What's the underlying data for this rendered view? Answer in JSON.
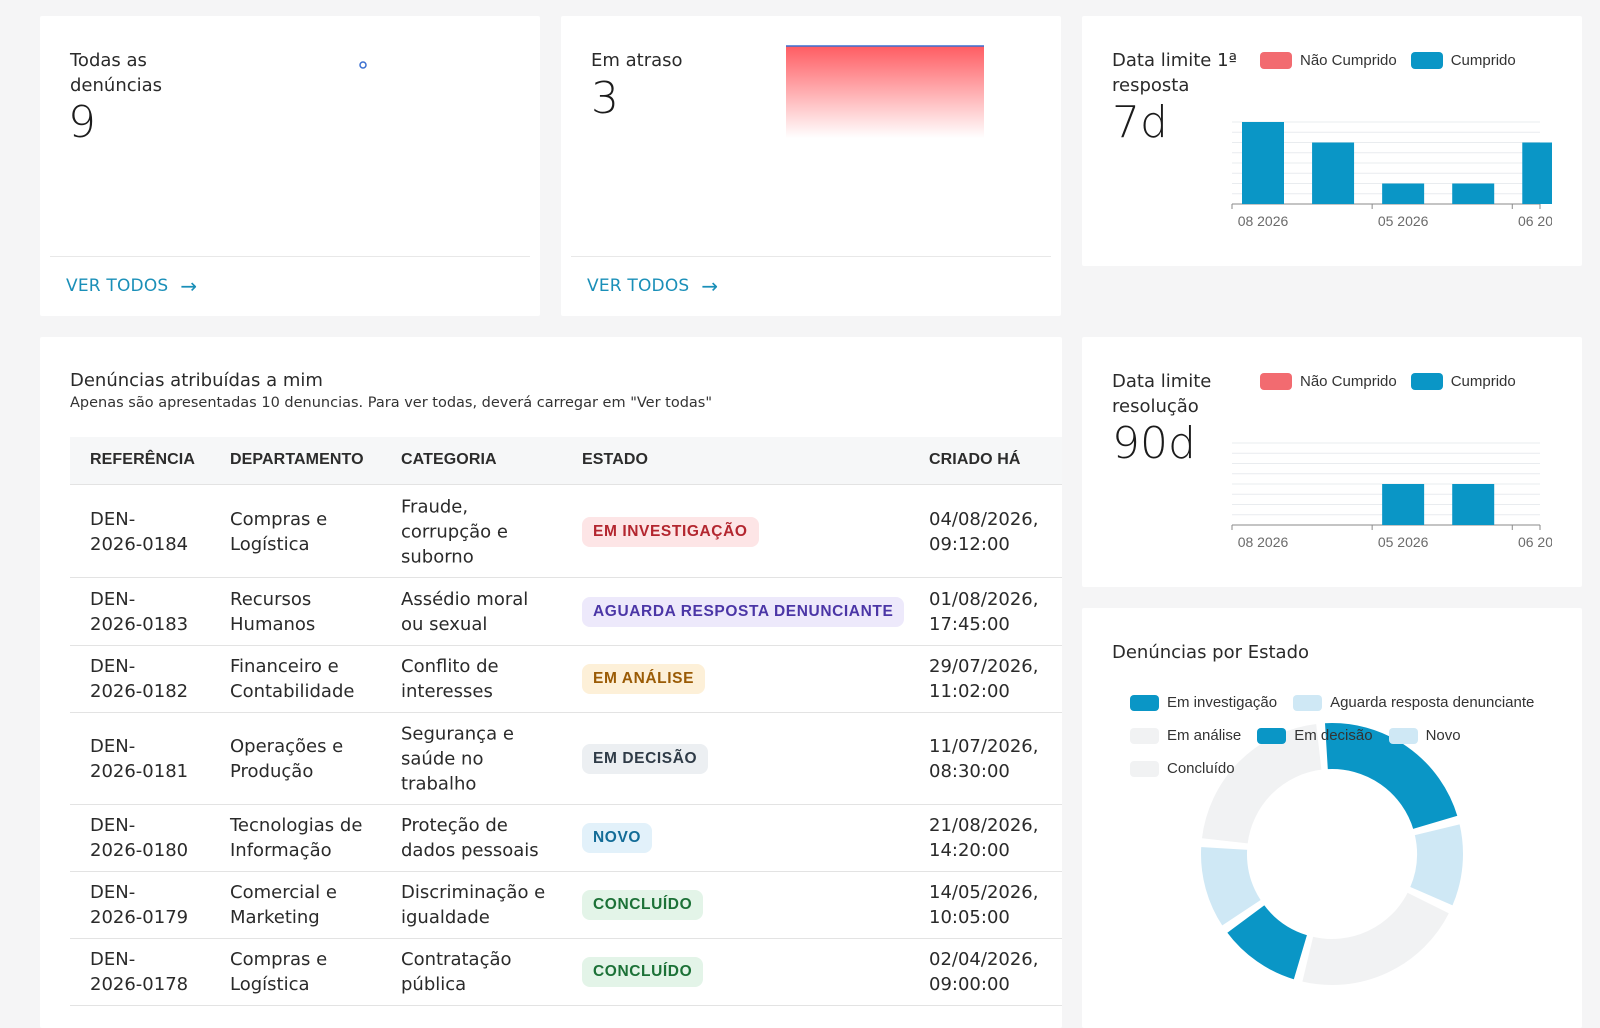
{
  "cards": {
    "total": {
      "title_line1": "Todas as",
      "title_line2": "denúncias",
      "value": "9",
      "link": "VER TODOS",
      "arrow": "→"
    },
    "overdue": {
      "title": "Em atraso",
      "value": "3",
      "link": "VER TODOS",
      "arrow": "→"
    },
    "first_response": {
      "title_line1": "Data limite 1ª",
      "title_line2": "resposta",
      "value": "7d",
      "legend": [
        "Não Cumprido",
        "Cumprido"
      ],
      "ticks": [
        "08 2026",
        "05 2026",
        "06 2026"
      ]
    },
    "resolution": {
      "title_line1": "Data limite",
      "title_line2": "resolução",
      "value": "90d",
      "legend": [
        "Não Cumprido",
        "Cumprido"
      ],
      "ticks": [
        "08 2026",
        "05 2026",
        "06 2026"
      ]
    },
    "by_state": {
      "title": "Denúncias por Estado",
      "legend": [
        "Em investigação",
        "Aguarda resposta denunciante",
        "Em análise",
        "Em decisão",
        "Novo",
        "Concluído"
      ]
    }
  },
  "colors": {
    "not_met": "#f26b70",
    "met": "#0a96c6",
    "link": "#1a8fb8"
  },
  "chart_data": [
    {
      "type": "bar",
      "categories": [
        "08 2026",
        "",
        "05 2026",
        "",
        "06 2026"
      ],
      "series": [
        {
          "name": "Cumprido",
          "values": [
            4,
            3,
            1,
            1,
            3
          ]
        }
      ]
    },
    {
      "type": "bar",
      "categories": [
        "08 2026",
        "",
        "05 2026",
        "",
        "06 2026"
      ],
      "series": [
        {
          "name": "Cumprido",
          "values": [
            0,
            0,
            2,
            2,
            0
          ]
        }
      ]
    },
    {
      "type": "pie",
      "categories": [
        "Em investigação",
        "Aguarda resposta denunciante",
        "Em análise",
        "Em decisão",
        "Novo",
        "Concluído"
      ],
      "values": [
        2,
        1,
        2,
        1,
        1,
        2
      ]
    }
  ],
  "assigned": {
    "title": "Denúncias atribuídas a mim",
    "subtitle": "Apenas são apresentadas 10 denuncias. Para ver todas, deverá carregar em \"Ver todas\"",
    "headers": [
      "REFERÊNCIA",
      "DEPARTAMENTO",
      "CATEGORIA",
      "ESTADO",
      "CRIADO HÁ"
    ],
    "rows": [
      {
        "ref": [
          "DEN-",
          "2026-0184"
        ],
        "dept": [
          "Compras e",
          "Logística"
        ],
        "cat": [
          "Fraude,",
          "corrupção e",
          "suborno"
        ],
        "state": "EM INVESTIGAÇÃO",
        "created": [
          "04/08/2026,",
          "09:12:00"
        ]
      },
      {
        "ref": [
          "DEN-",
          "2026-0183"
        ],
        "dept": [
          "Recursos",
          "Humanos"
        ],
        "cat": [
          "Assédio moral",
          "ou sexual"
        ],
        "state": "AGUARDA RESPOSTA DENUNCIANTE",
        "created": [
          "01/08/2026,",
          "17:45:00"
        ]
      },
      {
        "ref": [
          "DEN-",
          "2026-0182"
        ],
        "dept": [
          "Financeiro e",
          "Contabilidade"
        ],
        "cat": [
          "Conflito de",
          "interesses"
        ],
        "state": "EM ANÁLISE",
        "created": [
          "29/07/2026,",
          "11:02:00"
        ]
      },
      {
        "ref": [
          "DEN-",
          "2026-0181"
        ],
        "dept": [
          "Operações e",
          "Produção"
        ],
        "cat": [
          "Segurança e",
          "saúde no",
          "trabalho"
        ],
        "state": "EM DECISÃO",
        "created": [
          "11/07/2026,",
          "08:30:00"
        ]
      },
      {
        "ref": [
          "DEN-",
          "2026-0180"
        ],
        "dept": [
          "Tecnologias de",
          "Informação"
        ],
        "cat": [
          "Proteção de",
          "dados pessoais"
        ],
        "state": "NOVO",
        "created": [
          "21/08/2026,",
          "14:20:00"
        ]
      },
      {
        "ref": [
          "DEN-",
          "2026-0179"
        ],
        "dept": [
          "Comercial e",
          "Marketing"
        ],
        "cat": [
          "Discriminação e",
          "igualdade"
        ],
        "state": "CONCLUÍDO",
        "created": [
          "14/05/2026,",
          "10:05:00"
        ]
      },
      {
        "ref": [
          "DEN-",
          "2026-0178"
        ],
        "dept": [
          "Compras e",
          "Logística"
        ],
        "cat": [
          "Contratação",
          "pública"
        ],
        "state": "CONCLUÍDO",
        "created": [
          "02/04/2026,",
          "09:00:00"
        ]
      }
    ]
  }
}
